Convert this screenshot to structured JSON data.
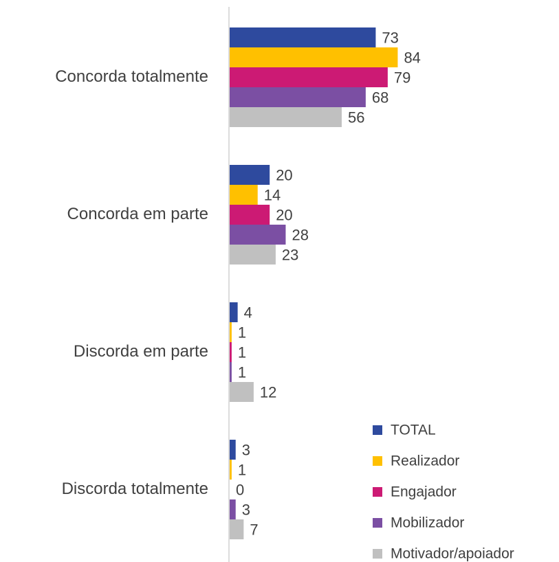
{
  "chart_data": {
    "type": "bar",
    "orientation": "horizontal",
    "categories": [
      "Concorda totalmente",
      "Concorda em parte",
      "Discorda em parte",
      "Discorda totalmente"
    ],
    "series": [
      {
        "name": "TOTAL",
        "color": "#2e4a9e",
        "values": [
          73,
          20,
          4,
          3
        ]
      },
      {
        "name": "Realizador",
        "color": "#ffc000",
        "values": [
          84,
          14,
          1,
          1
        ]
      },
      {
        "name": "Engajador",
        "color": "#cc1a74",
        "values": [
          79,
          20,
          1,
          0
        ]
      },
      {
        "name": "Mobilizador",
        "color": "#7b4fa3",
        "values": [
          68,
          28,
          1,
          3
        ]
      },
      {
        "name": "Motivador/apoiador",
        "color": "#c0c0c0",
        "values": [
          56,
          23,
          12,
          7
        ]
      }
    ],
    "xlim": [
      0,
      100
    ],
    "legend": "bottom-right"
  }
}
